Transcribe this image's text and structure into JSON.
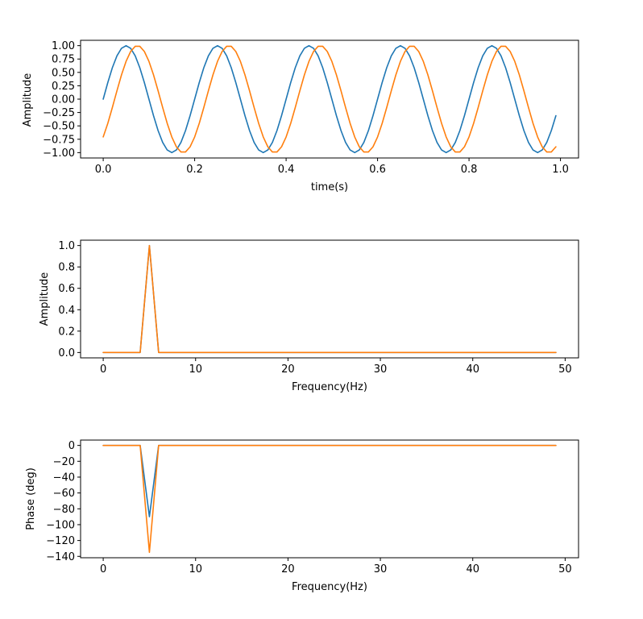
{
  "chart_data": [
    {
      "type": "line",
      "title": "",
      "xlabel": "time(s)",
      "ylabel": "Amplitude",
      "xlim": [
        -0.0495,
        1.0395
      ],
      "ylim": [
        -1.1,
        1.1
      ],
      "xticks": [
        0.0,
        0.2,
        0.4,
        0.6,
        0.8,
        1.0
      ],
      "xtick_labels": [
        "0.0",
        "0.2",
        "0.4",
        "0.6",
        "0.8",
        "1.0"
      ],
      "yticks": [
        1.0,
        0.75,
        0.5,
        0.25,
        0.0,
        -0.25,
        -0.5,
        -0.75,
        -1.0
      ],
      "ytick_labels": [
        "1.00",
        "0.75",
        "0.50",
        "0.25",
        "0.00",
        "−0.25",
        "−0.50",
        "−0.75",
        "−1.00"
      ],
      "grid": false,
      "series": [
        {
          "color": "#1f77b4",
          "x": [
            0,
            0.01,
            0.02,
            0.03,
            0.04,
            0.05,
            0.06,
            0.07,
            0.08,
            0.09,
            0.1,
            0.11,
            0.12,
            0.13,
            0.14,
            0.15,
            0.16,
            0.17,
            0.18,
            0.19,
            0.2,
            0.21,
            0.22,
            0.23,
            0.24,
            0.25,
            0.26,
            0.27,
            0.28,
            0.29,
            0.3,
            0.31,
            0.32,
            0.33,
            0.34,
            0.35,
            0.36,
            0.37,
            0.38,
            0.39,
            0.4,
            0.41,
            0.42,
            0.43,
            0.44,
            0.45,
            0.46,
            0.47,
            0.48,
            0.49,
            0.5,
            0.51,
            0.52,
            0.53,
            0.54,
            0.55,
            0.56,
            0.57,
            0.58,
            0.59,
            0.6,
            0.61,
            0.62,
            0.63,
            0.64,
            0.65,
            0.66,
            0.67,
            0.68,
            0.69,
            0.7,
            0.71,
            0.72,
            0.73,
            0.74,
            0.75,
            0.76,
            0.77,
            0.78,
            0.79,
            0.8,
            0.81,
            0.82,
            0.83,
            0.84,
            0.85,
            0.86,
            0.87,
            0.88,
            0.89,
            0.9,
            0.91,
            0.92,
            0.93,
            0.94,
            0.95,
            0.96,
            0.97,
            0.98,
            0.99
          ],
          "y": [
            0,
            0.309,
            0.588,
            0.809,
            0.951,
            1,
            0.951,
            0.809,
            0.588,
            0.309,
            0,
            -0.309,
            -0.588,
            -0.809,
            -0.951,
            -1,
            -0.951,
            -0.809,
            -0.588,
            -0.309,
            0,
            0.309,
            0.588,
            0.809,
            0.951,
            1,
            0.951,
            0.809,
            0.588,
            0.309,
            0,
            -0.309,
            -0.588,
            -0.809,
            -0.951,
            -1,
            -0.951,
            -0.809,
            -0.588,
            -0.309,
            0,
            0.309,
            0.588,
            0.809,
            0.951,
            1,
            0.951,
            0.809,
            0.588,
            0.309,
            0,
            -0.309,
            -0.588,
            -0.809,
            -0.951,
            -1,
            -0.951,
            -0.809,
            -0.588,
            -0.309,
            0,
            0.309,
            0.588,
            0.809,
            0.951,
            1,
            0.951,
            0.809,
            0.588,
            0.309,
            0,
            -0.309,
            -0.588,
            -0.809,
            -0.951,
            -1,
            -0.951,
            -0.809,
            -0.588,
            -0.309,
            0,
            0.309,
            0.588,
            0.809,
            0.951,
            1,
            0.951,
            0.809,
            0.588,
            0.309,
            0,
            -0.309,
            -0.588,
            -0.809,
            -0.951,
            -1,
            -0.951,
            -0.809,
            -0.588,
            -0.309
          ]
        },
        {
          "color": "#ff7f0e",
          "x": [
            0,
            0.01,
            0.02,
            0.03,
            0.04,
            0.05,
            0.06,
            0.07,
            0.08,
            0.09,
            0.1,
            0.11,
            0.12,
            0.13,
            0.14,
            0.15,
            0.16,
            0.17,
            0.18,
            0.19,
            0.2,
            0.21,
            0.22,
            0.23,
            0.24,
            0.25,
            0.26,
            0.27,
            0.28,
            0.29,
            0.3,
            0.31,
            0.32,
            0.33,
            0.34,
            0.35,
            0.36,
            0.37,
            0.38,
            0.39,
            0.4,
            0.41,
            0.42,
            0.43,
            0.44,
            0.45,
            0.46,
            0.47,
            0.48,
            0.49,
            0.5,
            0.51,
            0.52,
            0.53,
            0.54,
            0.55,
            0.56,
            0.57,
            0.58,
            0.59,
            0.6,
            0.61,
            0.62,
            0.63,
            0.64,
            0.65,
            0.66,
            0.67,
            0.68,
            0.69,
            0.7,
            0.71,
            0.72,
            0.73,
            0.74,
            0.75,
            0.76,
            0.77,
            0.78,
            0.79,
            0.8,
            0.81,
            0.82,
            0.83,
            0.84,
            0.85,
            0.86,
            0.87,
            0.88,
            0.89,
            0.9,
            0.91,
            0.92,
            0.93,
            0.94,
            0.95,
            0.96,
            0.97,
            0.98,
            0.99
          ],
          "y": [
            -0.707,
            -0.454,
            -0.156,
            0.156,
            0.454,
            0.707,
            0.891,
            0.988,
            0.988,
            0.891,
            0.707,
            0.454,
            0.156,
            -0.156,
            -0.454,
            -0.707,
            -0.891,
            -0.988,
            -0.988,
            -0.891,
            -0.707,
            -0.454,
            -0.156,
            0.156,
            0.454,
            0.707,
            0.891,
            0.988,
            0.988,
            0.891,
            0.707,
            0.454,
            0.156,
            -0.156,
            -0.454,
            -0.707,
            -0.891,
            -0.988,
            -0.988,
            -0.891,
            -0.707,
            -0.454,
            -0.156,
            0.156,
            0.454,
            0.707,
            0.891,
            0.988,
            0.988,
            0.891,
            0.707,
            0.454,
            0.156,
            -0.156,
            -0.454,
            -0.707,
            -0.891,
            -0.988,
            -0.988,
            -0.891,
            -0.707,
            -0.454,
            -0.156,
            0.156,
            0.454,
            0.707,
            0.891,
            0.988,
            0.988,
            0.891,
            0.707,
            0.454,
            0.156,
            -0.156,
            -0.454,
            -0.707,
            -0.891,
            -0.988,
            -0.988,
            -0.891,
            -0.707,
            -0.454,
            -0.156,
            0.156,
            0.454,
            0.707,
            0.891,
            0.988,
            0.988,
            0.891,
            0.707,
            0.454,
            0.156,
            -0.156,
            -0.454,
            -0.707,
            -0.891,
            -0.988,
            -0.988,
            -0.891
          ]
        }
      ]
    },
    {
      "type": "line",
      "title": "",
      "xlabel": "Frequency(Hz)",
      "ylabel": "Amplitude",
      "xlim": [
        -2.45,
        51.45
      ],
      "ylim": [
        -0.05,
        1.05
      ],
      "xticks": [
        0,
        10,
        20,
        30,
        40,
        50
      ],
      "xtick_labels": [
        "0",
        "10",
        "20",
        "30",
        "40",
        "50"
      ],
      "yticks": [
        0.0,
        0.2,
        0.4,
        0.6,
        0.8,
        1.0
      ],
      "ytick_labels": [
        "0.0",
        "0.2",
        "0.4",
        "0.6",
        "0.8",
        "1.0"
      ],
      "grid": false,
      "series": [
        {
          "color": "#1f77b4",
          "x": [
            0,
            4,
            5,
            6,
            49
          ],
          "y": [
            0,
            0,
            1,
            0,
            0
          ]
        },
        {
          "color": "#ff7f0e",
          "x": [
            0,
            4,
            5,
            6,
            49
          ],
          "y": [
            0,
            0,
            1,
            0,
            0
          ]
        }
      ]
    },
    {
      "type": "line",
      "title": "",
      "xlabel": "Frequency(Hz)",
      "ylabel": "Phase (deg)",
      "xlim": [
        -2.45,
        51.45
      ],
      "ylim": [
        -141.75,
        6.75
      ],
      "xticks": [
        0,
        10,
        20,
        30,
        40,
        50
      ],
      "xtick_labels": [
        "0",
        "10",
        "20",
        "30",
        "40",
        "50"
      ],
      "yticks": [
        0,
        -20,
        -40,
        -60,
        -80,
        -100,
        -120,
        -140
      ],
      "ytick_labels": [
        "0",
        "−20",
        "−40",
        "−60",
        "−80",
        "−100",
        "−120",
        "−140"
      ],
      "grid": false,
      "series": [
        {
          "color": "#1f77b4",
          "x": [
            0,
            4,
            5,
            6,
            49
          ],
          "y": [
            0,
            0,
            -90,
            0,
            0
          ]
        },
        {
          "color": "#ff7f0e",
          "x": [
            0,
            4,
            5,
            6,
            49
          ],
          "y": [
            0,
            0,
            -135,
            0,
            0
          ]
        }
      ]
    }
  ]
}
